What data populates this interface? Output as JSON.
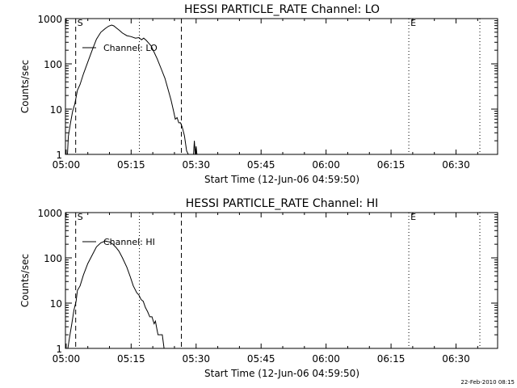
{
  "footer": {
    "timestamp": "22-Feb-2010 08:15"
  },
  "chart_data": [
    {
      "type": "line",
      "title": "HESSI PARTICLE_RATE Channel: LO",
      "xlabel": "Start Time (12-Jun-06 04:59:50)",
      "ylabel": "Counts/sec",
      "yscale": "log",
      "ylim": [
        1,
        1000
      ],
      "xlim_minutes": [
        -0.1667,
        99.6
      ],
      "x_unit": "minutes after 05:00",
      "xticks": [
        {
          "label": "05:00",
          "value": 0
        },
        {
          "label": "05:15",
          "value": 15
        },
        {
          "label": "05:30",
          "value": 30
        },
        {
          "label": "05:45",
          "value": 45
        },
        {
          "label": "06:00",
          "value": 60
        },
        {
          "label": "06:15",
          "value": 75
        },
        {
          "label": "06:30",
          "value": 90
        }
      ],
      "yticks": [
        {
          "label": "1",
          "value": 1
        },
        {
          "label": "10",
          "value": 10
        },
        {
          "label": "100",
          "value": 100
        },
        {
          "label": "1000",
          "value": 1000
        }
      ],
      "legend": {
        "label": "Channel: LO",
        "position": "top-left"
      },
      "markers": [
        {
          "style": "dashed",
          "x": 2.2,
          "label": "S"
        },
        {
          "style": "dotted",
          "x": 16.9,
          "label": ""
        },
        {
          "style": "dashed",
          "x": 26.6,
          "label": ""
        },
        {
          "style": "dotted",
          "x": 79.1,
          "label": "E"
        },
        {
          "style": "dotted",
          "x": 95.5,
          "label": ""
        }
      ],
      "series": [
        {
          "name": "Channel: LO",
          "x": [
            0.3,
            0.5,
            1.0,
            1.5,
            2.0,
            2.6,
            3.2,
            4.0,
            5.0,
            6.0,
            7.0,
            8.0,
            9.0,
            9.8,
            10.5,
            11.0,
            11.6,
            12.2,
            13.0,
            14.0,
            15.0,
            16.0,
            16.8,
            17.4,
            17.9,
            18.5,
            19.0,
            19.6,
            20.2,
            21.0,
            22.0,
            22.8,
            23.5,
            24.2,
            24.8,
            25.2,
            25.6,
            26.0,
            26.4,
            26.8,
            27.3,
            27.8,
            28.2,
            28.8,
            29.4,
            29.6,
            29.8,
            30.0,
            30.2
          ],
          "y": [
            1,
            2.5,
            5,
            9,
            13,
            26,
            35,
            60,
            110,
            200,
            350,
            500,
            600,
            680,
            720,
            690,
            620,
            560,
            480,
            420,
            400,
            370,
            380,
            340,
            370,
            330,
            290,
            250,
            190,
            130,
            75,
            48,
            28,
            16,
            9,
            6,
            6.5,
            5,
            5,
            4,
            2.6,
            1.2,
            1,
            1,
            1,
            2,
            1,
            1.5,
            1
          ]
        }
      ]
    },
    {
      "type": "line",
      "title": "HESSI PARTICLE_RATE Channel: HI",
      "xlabel": "Start Time (12-Jun-06 04:59:50)",
      "ylabel": "Counts/sec",
      "yscale": "log",
      "ylim": [
        1,
        1000
      ],
      "xlim_minutes": [
        -0.1667,
        99.6
      ],
      "x_unit": "minutes after 05:00",
      "xticks": [
        {
          "label": "05:00",
          "value": 0
        },
        {
          "label": "05:15",
          "value": 15
        },
        {
          "label": "05:30",
          "value": 30
        },
        {
          "label": "05:45",
          "value": 45
        },
        {
          "label": "06:00",
          "value": 60
        },
        {
          "label": "06:15",
          "value": 75
        },
        {
          "label": "06:30",
          "value": 90
        }
      ],
      "yticks": [
        {
          "label": "1",
          "value": 1
        },
        {
          "label": "10",
          "value": 10
        },
        {
          "label": "100",
          "value": 100
        },
        {
          "label": "1000",
          "value": 1000
        }
      ],
      "legend": {
        "label": "Channel: HI",
        "position": "top-left"
      },
      "markers": [
        {
          "style": "dashed",
          "x": 2.2,
          "label": "S"
        },
        {
          "style": "dotted",
          "x": 16.9,
          "label": ""
        },
        {
          "style": "dashed",
          "x": 26.6,
          "label": ""
        },
        {
          "style": "dotted",
          "x": 79.1,
          "label": "E"
        },
        {
          "style": "dotted",
          "x": 95.5,
          "label": ""
        }
      ],
      "series": [
        {
          "name": "Channel: HI",
          "x": [
            0.4,
            0.8,
            1.3,
            1.8,
            2.3,
            2.6,
            3.2,
            4.0,
            5.0,
            6.0,
            7.0,
            8.0,
            9.0,
            10.0,
            10.8,
            11.5,
            12.2,
            13.0,
            14.0,
            14.8,
            15.5,
            16.3,
            16.8,
            17.3,
            17.8,
            18.3,
            18.8,
            19.3,
            19.8,
            20.3,
            20.6,
            20.9,
            21.2,
            21.6,
            22.2,
            22.6
          ],
          "y": [
            1,
            1.8,
            3.5,
            7,
            11,
            19,
            24,
            42,
            75,
            115,
            175,
            215,
            235,
            225,
            200,
            170,
            140,
            100,
            62,
            38,
            24,
            17,
            15,
            12,
            11,
            8,
            6.5,
            5,
            5,
            3.5,
            4,
            2.8,
            2,
            2,
            2,
            1
          ]
        }
      ]
    }
  ]
}
